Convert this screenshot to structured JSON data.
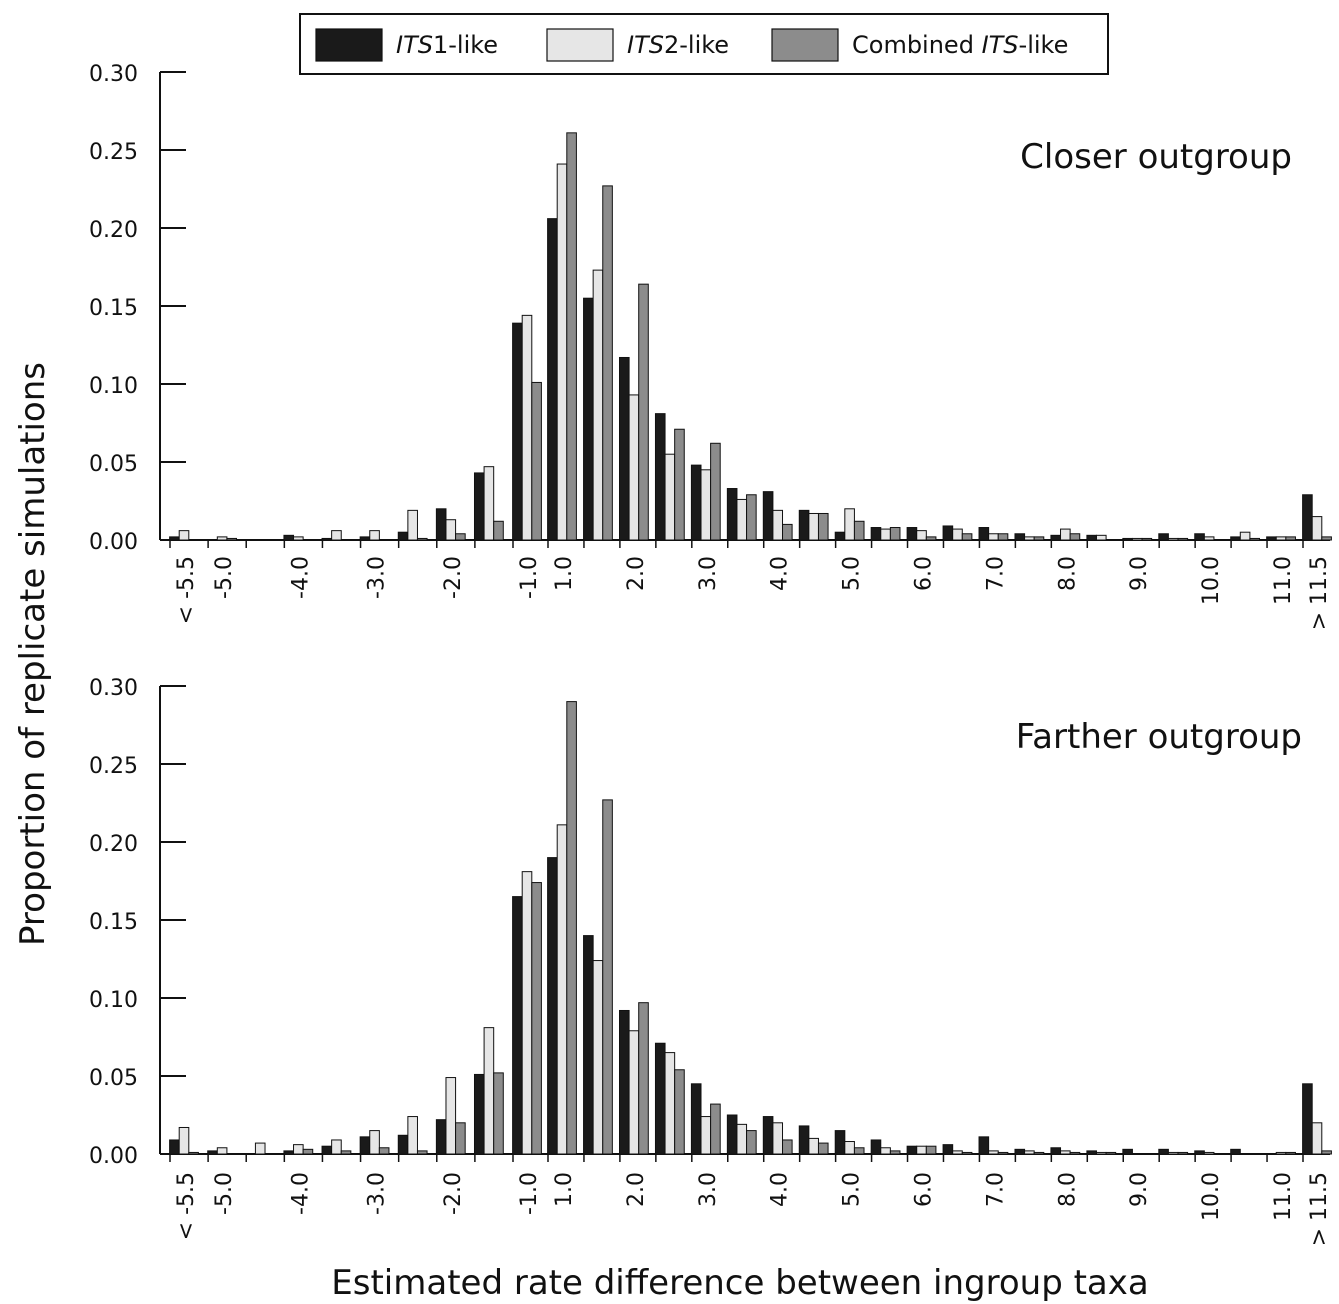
{
  "chart_data": {
    "type": "bar",
    "ylabel": "Proportion of replicate simulations",
    "xlabel": "Estimated rate difference between ingroup taxa",
    "ylim": [
      0,
      0.3
    ],
    "y_ticks": [
      "0.00",
      "0.05",
      "0.10",
      "0.15",
      "0.20",
      "0.25",
      "0.30"
    ],
    "x_tick_labels": [
      "< -5.5",
      "-5.0",
      "-4.0",
      "-3.0",
      "-2.0",
      "-1.0",
      "1.0",
      "2.0",
      "3.0",
      "4.0",
      "5.0",
      "6.0",
      "7.0",
      "8.0",
      "9.0",
      "10.0",
      "11.0",
      "> 11.5"
    ],
    "x_tick_positions": [
      -5.5,
      -5.0,
      -4.0,
      -3.0,
      -2.0,
      -1.0,
      1.0,
      2.0,
      3.0,
      4.0,
      5.0,
      6.0,
      7.0,
      8.0,
      9.0,
      10.0,
      11.0,
      11.5
    ],
    "categories": [
      -5.5,
      -5.0,
      -4.5,
      -4.0,
      -3.5,
      -3.0,
      -2.5,
      -2.0,
      -1.5,
      -1.0,
      1.0,
      1.5,
      2.0,
      2.5,
      3.0,
      3.5,
      4.0,
      4.5,
      5.0,
      5.5,
      6.0,
      6.5,
      7.0,
      7.5,
      8.0,
      8.5,
      9.0,
      9.5,
      10.0,
      10.5,
      11.0,
      11.5
    ],
    "legend": {
      "placement": "top-center",
      "entries": [
        {
          "italic": "ITS",
          "suffix": "1-like",
          "color": "#1a1a1a"
        },
        {
          "italic": "ITS",
          "suffix": "2-like",
          "color": "#e6e6e6"
        },
        {
          "prefix": "Combined ",
          "italic": "ITS",
          "suffix": "-like",
          "color": "#8c8c8c"
        }
      ]
    },
    "panels": [
      {
        "title": "Closer outgroup",
        "series": [
          {
            "color": "#1a1a1a",
            "values": [
              0.002,
              0.0,
              0.0,
              0.003,
              0.001,
              0.002,
              0.005,
              0.02,
              0.043,
              0.139,
              0.206,
              0.155,
              0.117,
              0.081,
              0.048,
              0.033,
              0.031,
              0.019,
              0.005,
              0.008,
              0.008,
              0.009,
              0.008,
              0.004,
              0.003,
              0.003,
              0.001,
              0.004,
              0.004,
              0.002,
              0.002,
              0.029
            ]
          },
          {
            "color": "#e6e6e6",
            "values": [
              0.006,
              0.002,
              0.0,
              0.002,
              0.006,
              0.006,
              0.019,
              0.013,
              0.047,
              0.144,
              0.241,
              0.173,
              0.093,
              0.055,
              0.045,
              0.026,
              0.019,
              0.017,
              0.02,
              0.007,
              0.006,
              0.007,
              0.004,
              0.002,
              0.007,
              0.003,
              0.001,
              0.001,
              0.002,
              0.005,
              0.002,
              0.015
            ]
          },
          {
            "color": "#8c8c8c",
            "values": [
              0.0,
              0.001,
              0.0,
              0.0,
              0.0,
              0.0,
              0.001,
              0.004,
              0.012,
              0.101,
              0.261,
              0.227,
              0.164,
              0.071,
              0.062,
              0.029,
              0.01,
              0.017,
              0.012,
              0.008,
              0.002,
              0.004,
              0.004,
              0.002,
              0.004,
              0.0,
              0.001,
              0.001,
              0.0,
              0.001,
              0.002,
              0.002
            ]
          }
        ]
      },
      {
        "title": "Farther outgroup",
        "series": [
          {
            "color": "#1a1a1a",
            "values": [
              0.009,
              0.002,
              0.0,
              0.002,
              0.005,
              0.011,
              0.012,
              0.022,
              0.051,
              0.165,
              0.19,
              0.14,
              0.092,
              0.071,
              0.045,
              0.025,
              0.024,
              0.018,
              0.015,
              0.009,
              0.005,
              0.006,
              0.011,
              0.003,
              0.004,
              0.002,
              0.003,
              0.003,
              0.002,
              0.003,
              0.0,
              0.045
            ]
          },
          {
            "color": "#e6e6e6",
            "values": [
              0.017,
              0.004,
              0.007,
              0.006,
              0.009,
              0.015,
              0.024,
              0.049,
              0.081,
              0.181,
              0.211,
              0.124,
              0.079,
              0.065,
              0.024,
              0.019,
              0.02,
              0.01,
              0.008,
              0.004,
              0.005,
              0.002,
              0.002,
              0.002,
              0.002,
              0.001,
              0.0,
              0.001,
              0.001,
              0.0,
              0.001,
              0.02
            ]
          },
          {
            "color": "#8c8c8c",
            "values": [
              0.001,
              0.0,
              0.0,
              0.003,
              0.002,
              0.004,
              0.002,
              0.02,
              0.052,
              0.174,
              0.29,
              0.227,
              0.097,
              0.054,
              0.032,
              0.015,
              0.009,
              0.007,
              0.004,
              0.002,
              0.005,
              0.001,
              0.001,
              0.001,
              0.001,
              0.001,
              0.0,
              0.001,
              0.0,
              0.0,
              0.001,
              0.002
            ]
          }
        ]
      }
    ]
  }
}
